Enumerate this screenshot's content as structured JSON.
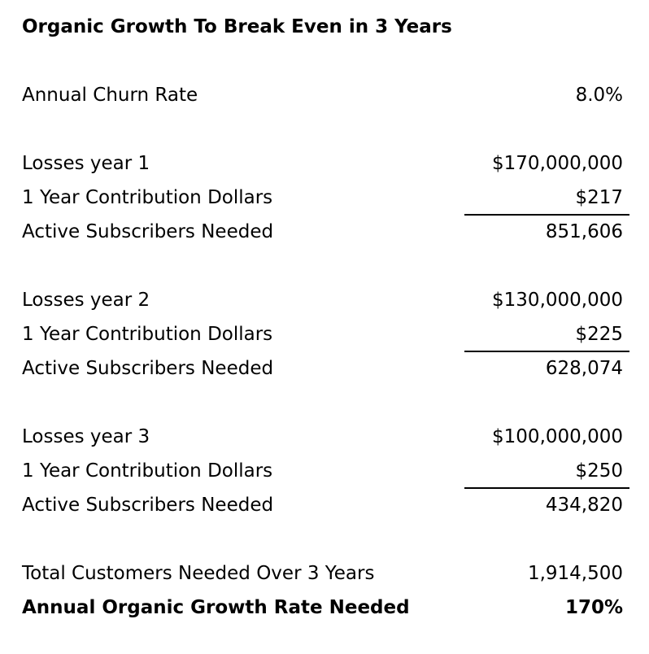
{
  "title": "Organic Growth To Break Even in 3 Years",
  "churn": {
    "label": "Annual Churn Rate",
    "value": "8.0%"
  },
  "years": [
    {
      "losses_label": "Losses year 1",
      "losses_value": "$170,000,000",
      "contribution_label": "1 Year Contribution Dollars",
      "contribution_value": "$217",
      "subscribers_label": "Active Subscribers Needed",
      "subscribers_value": "851,606"
    },
    {
      "losses_label": "Losses year 2",
      "losses_value": "$130,000,000",
      "contribution_label": "1 Year Contribution Dollars",
      "contribution_value": "$225",
      "subscribers_label": "Active Subscribers Needed",
      "subscribers_value": "628,074"
    },
    {
      "losses_label": "Losses year 3",
      "losses_value": "$100,000,000",
      "contribution_label": "1 Year Contribution Dollars",
      "contribution_value": "$250",
      "subscribers_label": "Active Subscribers Needed",
      "subscribers_value": "434,820"
    }
  ],
  "total": {
    "label": "Total Customers Needed Over 3 Years",
    "value": "1,914,500"
  },
  "growth": {
    "label": "Annual Organic Growth Rate Needed",
    "value": "170%"
  }
}
